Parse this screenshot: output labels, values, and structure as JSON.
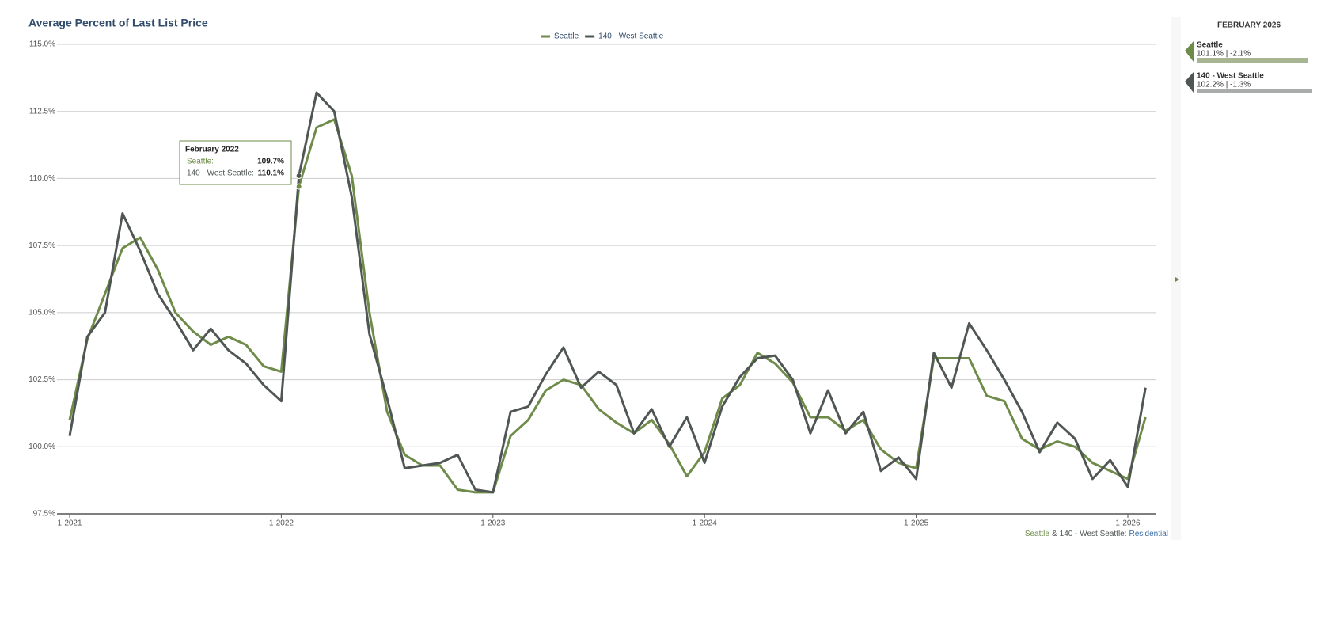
{
  "chart_data": {
    "type": "line",
    "title": "Average Percent of Last List Price",
    "x": [
      "2021-01",
      "2021-02",
      "2021-03",
      "2021-04",
      "2021-05",
      "2021-06",
      "2021-07",
      "2021-08",
      "2021-09",
      "2021-10",
      "2021-11",
      "2021-12",
      "2022-01",
      "2022-02",
      "2022-03",
      "2022-04",
      "2022-05",
      "2022-06",
      "2022-07",
      "2022-08",
      "2022-09",
      "2022-10",
      "2022-11",
      "2022-12",
      "2023-01",
      "2023-02",
      "2023-03",
      "2023-04",
      "2023-05",
      "2023-06",
      "2023-07",
      "2023-08",
      "2023-09",
      "2023-10",
      "2023-11",
      "2023-12",
      "2024-01",
      "2024-02",
      "2024-03",
      "2024-04",
      "2024-05",
      "2024-06",
      "2024-07",
      "2024-08",
      "2024-09",
      "2024-10",
      "2024-11",
      "2024-12",
      "2025-01",
      "2025-02",
      "2025-03",
      "2025-04",
      "2025-05",
      "2025-06",
      "2025-07",
      "2025-08",
      "2025-09",
      "2025-10",
      "2025-11",
      "2025-12",
      "2026-01",
      "2026-02"
    ],
    "series": [
      {
        "name": "Seattle",
        "color": "#6e8b4a",
        "values": [
          101.0,
          104.0,
          105.7,
          107.4,
          107.8,
          106.6,
          105.0,
          104.3,
          103.8,
          104.1,
          103.8,
          103.0,
          102.8,
          109.7,
          111.9,
          112.2,
          110.1,
          105.0,
          101.3,
          99.7,
          99.3,
          99.3,
          98.4,
          98.3,
          98.3,
          100.4,
          101.0,
          102.1,
          102.5,
          102.3,
          101.4,
          100.9,
          100.5,
          101.0,
          100.1,
          98.9,
          99.8,
          101.8,
          102.3,
          103.5,
          103.1,
          102.4,
          101.1,
          101.1,
          100.6,
          101.0,
          99.9,
          99.4,
          99.2,
          103.3,
          103.3,
          103.3,
          101.9,
          101.7,
          100.3,
          99.9,
          100.2,
          100.0,
          99.4,
          99.1,
          98.8,
          101.1
        ]
      },
      {
        "name": "140 - West Seattle",
        "color": "#4f5654",
        "values": [
          100.4,
          104.1,
          105.0,
          108.7,
          107.3,
          105.7,
          104.7,
          103.6,
          104.4,
          103.6,
          103.1,
          102.3,
          101.7,
          110.1,
          113.2,
          112.5,
          109.3,
          104.2,
          101.8,
          99.2,
          99.3,
          99.4,
          99.7,
          98.4,
          98.3,
          101.3,
          101.5,
          102.7,
          103.7,
          102.2,
          102.8,
          102.3,
          100.5,
          101.4,
          100.0,
          101.1,
          99.4,
          101.5,
          102.6,
          103.3,
          103.4,
          102.5,
          100.5,
          102.1,
          100.5,
          101.3,
          99.1,
          99.6,
          98.8,
          103.5,
          102.2,
          104.6,
          103.6,
          102.5,
          101.3,
          99.8,
          100.9,
          100.3,
          98.8,
          99.5,
          98.5,
          102.2
        ]
      }
    ],
    "ylim": [
      97.5,
      115.0
    ],
    "yticks": [
      {
        "value": 97.5,
        "label": "97.5%"
      },
      {
        "value": 100,
        "label": "100.0%"
      },
      {
        "value": 102.5,
        "label": "102.5%"
      },
      {
        "value": 105,
        "label": "105.0%"
      },
      {
        "value": 107.5,
        "label": "107.5%"
      },
      {
        "value": 110,
        "label": "110.0%"
      },
      {
        "value": 112.5,
        "label": "112.5%"
      },
      {
        "value": 115,
        "label": "115.0%"
      }
    ],
    "xticks": [
      {
        "value": "2021-01",
        "label": "1-2021"
      },
      {
        "value": "2022-01",
        "label": "1-2022"
      },
      {
        "value": "2023-01",
        "label": "1-2023"
      },
      {
        "value": "2024-01",
        "label": "1-2024"
      },
      {
        "value": "2025-01",
        "label": "1-2025"
      },
      {
        "value": "2026-01",
        "label": "1-2026"
      }
    ],
    "grid": true,
    "legend": "top",
    "tooltip": {
      "title": "February 2022",
      "rows": [
        {
          "name": "Seattle:",
          "value": "109.7%"
        },
        {
          "name": "140 - West Seattle:",
          "value": "110.1%"
        }
      ]
    },
    "footer": [
      "Seattle",
      "&",
      "140 - West Seattle",
      ":",
      "Residential"
    ]
  },
  "side_panel": {
    "title": "FEBRUARY 2026",
    "items": [
      {
        "name": "Seattle",
        "detail": "101.1% | -2.1%"
      },
      {
        "name": "140 - West Seattle",
        "detail": "102.2% | -1.3%"
      }
    ]
  }
}
